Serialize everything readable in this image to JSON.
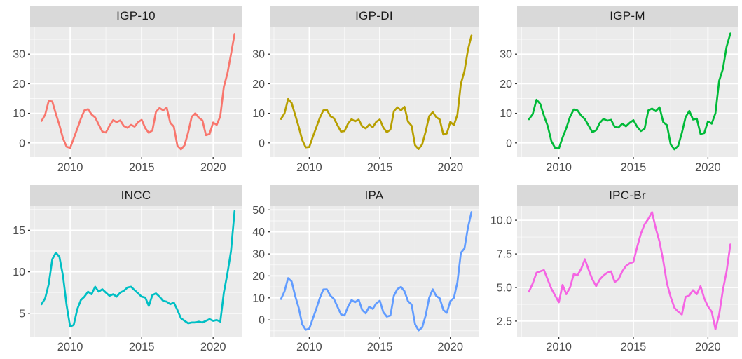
{
  "chart_data": {
    "type": "line",
    "title": "",
    "xlabel": "",
    "ylabel": "",
    "layout": {
      "rows": 2,
      "cols": 3,
      "legend": "none",
      "grid": true
    },
    "colors": {
      "background": "#FFFFFF",
      "panel_bg": "#EBEBEB",
      "strip_bg": "#D9D9D9",
      "strip_text": "#1A1A1A",
      "grid": "#FFFFFF",
      "tick_label": "#4D4D4D",
      "tick_mark": "#333333"
    },
    "x_axis": {
      "range": [
        2007.2,
        2022.0
      ],
      "ticks": [
        2010,
        2015,
        2020
      ],
      "tick_labels": [
        "2010",
        "2015",
        "2020"
      ],
      "minor": [
        2007.5,
        2012.5,
        2017.5
      ]
    },
    "x": [
      2008,
      2008.25,
      2008.5,
      2008.75,
      2009,
      2009.25,
      2009.5,
      2009.75,
      2010,
      2010.25,
      2010.5,
      2010.75,
      2011,
      2011.25,
      2011.5,
      2011.75,
      2012,
      2012.25,
      2012.5,
      2012.75,
      2013,
      2013.25,
      2013.5,
      2013.75,
      2014,
      2014.25,
      2014.5,
      2014.75,
      2015,
      2015.25,
      2015.5,
      2015.75,
      2016,
      2016.25,
      2016.5,
      2016.75,
      2017,
      2017.25,
      2017.5,
      2017.75,
      2018,
      2018.25,
      2018.5,
      2018.75,
      2019,
      2019.25,
      2019.5,
      2019.75,
      2020,
      2020.25,
      2020.5,
      2020.75,
      2021,
      2021.25,
      2021.5
    ],
    "series": [
      {
        "name": "IGP-10",
        "color": "#F8766D",
        "ylim": [
          -4.8,
          39.3
        ],
        "yticks": [
          0,
          10,
          20,
          30
        ],
        "ytick_labels": [
          "0",
          "10",
          "20",
          "30"
        ],
        "yminor": [
          5,
          15,
          25,
          35
        ],
        "values": [
          7.4,
          9.5,
          14.2,
          14.0,
          9.8,
          6.0,
          1.5,
          -1.3,
          -1.7,
          1.5,
          4.8,
          8.2,
          11.0,
          11.4,
          9.6,
          8.6,
          6.2,
          3.8,
          3.5,
          5.8,
          7.7,
          7.0,
          7.6,
          5.7,
          5.1,
          6.1,
          5.5,
          7.0,
          7.8,
          5.0,
          3.4,
          4.2,
          10.5,
          11.8,
          11.0,
          11.9,
          6.8,
          5.5,
          -1.0,
          -2.2,
          -0.8,
          3.5,
          8.8,
          10.0,
          8.5,
          7.6,
          2.6,
          3.0,
          6.9,
          6.1,
          9.0,
          19.0,
          23.5,
          30.0,
          36.8
        ]
      },
      {
        "name": "IGP-DI",
        "color": "#B79F00",
        "ylim": [
          -4.8,
          39.3
        ],
        "yticks": [
          0,
          10,
          20,
          30
        ],
        "ytick_labels": [
          "0",
          "10",
          "20",
          "30"
        ],
        "yminor": [
          5,
          15,
          25,
          35
        ],
        "values": [
          8.1,
          10.0,
          14.8,
          13.5,
          9.5,
          5.5,
          1.0,
          -1.5,
          -1.4,
          2.0,
          5.2,
          8.5,
          11.0,
          11.2,
          9.0,
          8.3,
          6.0,
          3.8,
          4.0,
          6.5,
          8.0,
          7.3,
          7.9,
          5.6,
          4.9,
          6.2,
          5.3,
          7.1,
          7.9,
          5.2,
          3.6,
          4.5,
          10.7,
          12.0,
          11.0,
          12.2,
          7.2,
          5.8,
          -0.8,
          -2.1,
          -0.5,
          3.8,
          9.0,
          10.4,
          8.7,
          7.9,
          2.8,
          3.2,
          7.1,
          6.0,
          9.5,
          20.0,
          24.3,
          31.5,
          36.3
        ]
      },
      {
        "name": "IGP-M",
        "color": "#00BA38",
        "ylim": [
          -4.8,
          39.3
        ],
        "yticks": [
          0,
          10,
          20,
          30
        ],
        "ytick_labels": [
          "0",
          "10",
          "20",
          "30"
        ],
        "yminor": [
          5,
          15,
          25,
          35
        ],
        "values": [
          8.0,
          9.7,
          14.6,
          13.2,
          9.2,
          5.8,
          0.5,
          -1.7,
          -1.9,
          1.8,
          5.0,
          8.8,
          11.3,
          11.0,
          9.2,
          8.0,
          5.8,
          3.6,
          4.3,
          6.8,
          8.1,
          7.5,
          7.8,
          5.4,
          5.2,
          6.5,
          5.6,
          6.8,
          7.7,
          5.5,
          4.0,
          4.8,
          11.0,
          11.6,
          10.7,
          12.0,
          7.0,
          6.0,
          -0.5,
          -2.2,
          -1.0,
          3.4,
          8.7,
          10.8,
          7.9,
          8.2,
          3.0,
          3.3,
          7.3,
          6.5,
          10.0,
          21.0,
          25.0,
          32.5,
          37.0
        ]
      },
      {
        "name": "INCC",
        "color": "#00BFC4",
        "ylim": [
          2.2,
          17.9
        ],
        "yticks": [
          5,
          10,
          15
        ],
        "ytick_labels": [
          "5",
          "10",
          "15"
        ],
        "yminor": [
          2.5,
          7.5,
          12.5,
          17.5
        ],
        "values": [
          6.1,
          6.8,
          8.5,
          11.5,
          12.3,
          11.8,
          9.5,
          6.0,
          3.4,
          3.6,
          5.5,
          6.6,
          7.0,
          7.6,
          7.3,
          8.2,
          7.6,
          7.9,
          7.5,
          7.1,
          7.3,
          7.0,
          7.5,
          7.7,
          8.1,
          8.2,
          7.8,
          7.4,
          7.0,
          6.9,
          5.9,
          7.2,
          7.4,
          7.0,
          6.5,
          6.4,
          6.1,
          6.3,
          5.4,
          4.4,
          4.1,
          3.8,
          3.9,
          3.9,
          4.0,
          3.9,
          4.1,
          4.3,
          4.1,
          4.2,
          4.0,
          7.5,
          9.8,
          12.5,
          17.3
        ]
      },
      {
        "name": "IPA",
        "color": "#619CFF",
        "ylim": [
          -7.6,
          51.7
        ],
        "yticks": [
          0,
          10,
          20,
          30,
          40,
          50
        ],
        "ytick_labels": [
          "0",
          "10",
          "20",
          "30",
          "40",
          "50"
        ],
        "yminor": [
          -5,
          5,
          15,
          25,
          35,
          45
        ],
        "values": [
          9.5,
          13.0,
          19.0,
          17.5,
          11.0,
          5.5,
          -2.0,
          -4.5,
          -4.0,
          0.5,
          5.0,
          10.0,
          13.8,
          13.9,
          11.0,
          9.5,
          6.0,
          2.5,
          2.0,
          6.0,
          9.0,
          8.0,
          9.2,
          4.5,
          3.0,
          6.0,
          5.0,
          7.5,
          8.7,
          3.5,
          1.5,
          2.0,
          11.0,
          14.0,
          15.0,
          13.0,
          8.5,
          7.0,
          -2.0,
          -4.8,
          -3.5,
          2.0,
          10.0,
          13.9,
          10.8,
          9.8,
          4.5,
          3.2,
          8.5,
          10.0,
          17.0,
          30.5,
          32.5,
          42.0,
          49.0
        ]
      },
      {
        "name": "IPC-Br",
        "color": "#F564E3",
        "ylim": [
          1.35,
          11.05
        ],
        "yticks": [
          2.5,
          5.0,
          7.5,
          10.0
        ],
        "ytick_labels": [
          "2.5",
          "5.0",
          "7.5",
          "10.0"
        ],
        "yminor": [
          3.75,
          6.25,
          8.75
        ],
        "values": [
          4.7,
          5.3,
          6.1,
          6.2,
          6.3,
          5.6,
          4.9,
          4.4,
          3.9,
          5.2,
          4.5,
          5.0,
          6.0,
          5.9,
          6.4,
          7.1,
          6.3,
          5.6,
          5.1,
          5.6,
          5.9,
          6.1,
          6.2,
          5.4,
          5.6,
          6.2,
          6.6,
          6.8,
          6.9,
          8.0,
          9.0,
          9.7,
          10.1,
          10.6,
          9.4,
          8.4,
          7.0,
          5.3,
          4.3,
          3.5,
          3.2,
          3.0,
          4.3,
          4.4,
          4.8,
          4.5,
          5.1,
          4.2,
          3.6,
          3.2,
          1.9,
          3.0,
          4.8,
          6.2,
          8.2
        ]
      }
    ]
  }
}
